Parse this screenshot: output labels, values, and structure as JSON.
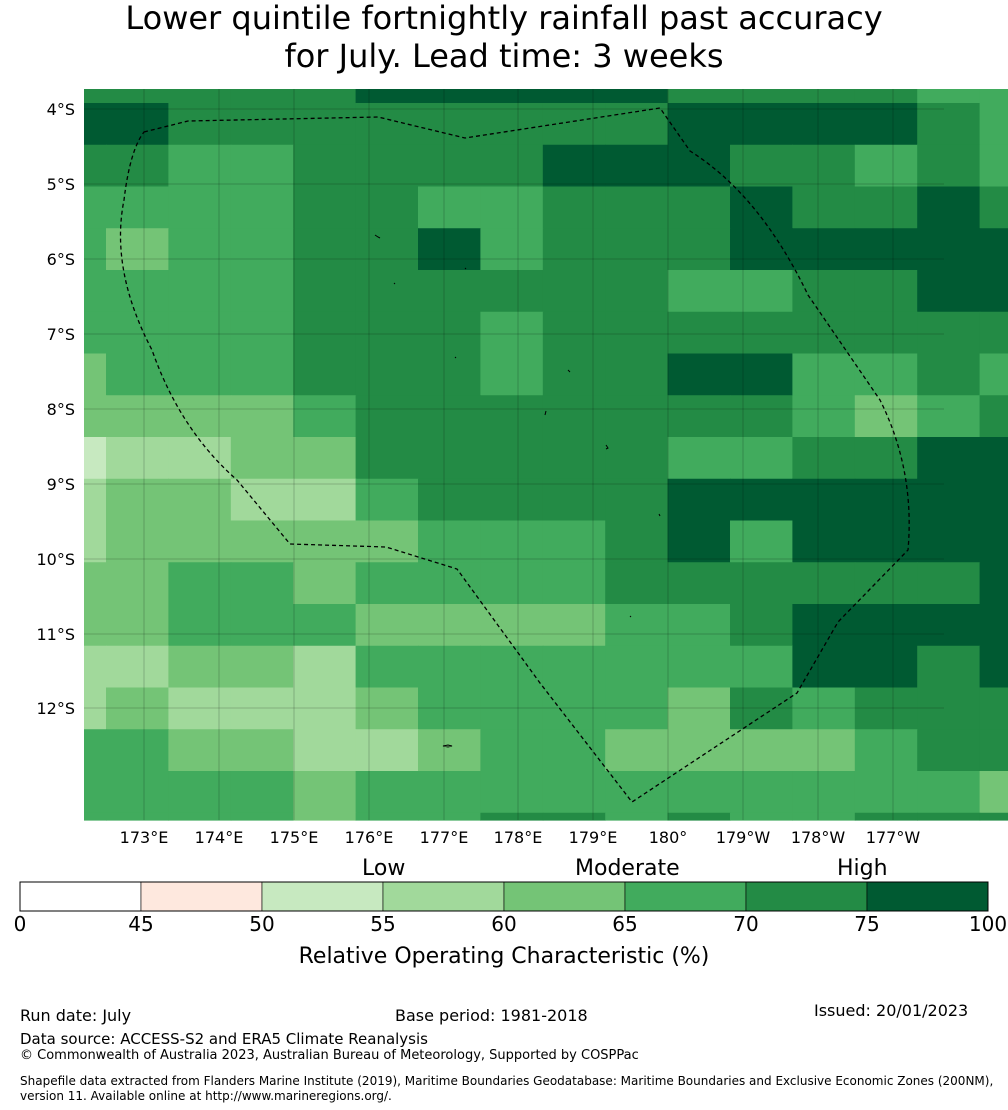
{
  "title": {
    "line1": "Lower quintile fortnightly rainfall past accuracy",
    "line2": "for July. Lead time: 3 weeks"
  },
  "map": {
    "lat_labels": [
      "4°S",
      "5°S",
      "6°S",
      "7°S",
      "8°S",
      "9°S",
      "10°S",
      "11°S",
      "12°S"
    ],
    "lon_labels": [
      "173°E",
      "174°E",
      "175°E",
      "176°E",
      "177°E",
      "178°E",
      "179°E",
      "180°",
      "179°W",
      "178°W",
      "177°W"
    ],
    "grid_rows": [
      [
        6,
        6,
        6,
        6,
        6,
        7,
        7,
        7,
        7,
        7,
        6,
        6,
        6,
        6,
        5,
        5,
        5,
        5
      ],
      [
        7,
        7,
        6,
        6,
        6,
        6,
        6,
        6,
        6,
        6,
        7,
        7,
        7,
        7,
        6,
        5,
        5,
        4
      ],
      [
        6,
        6,
        5,
        5,
        6,
        6,
        6,
        6,
        7,
        7,
        7,
        6,
        6,
        5,
        6,
        5,
        5,
        5
      ],
      [
        5,
        5,
        5,
        5,
        6,
        6,
        5,
        5,
        6,
        6,
        6,
        7,
        6,
        6,
        7,
        6,
        6,
        6
      ],
      [
        5,
        4,
        5,
        5,
        6,
        6,
        7,
        5,
        6,
        6,
        6,
        7,
        7,
        7,
        7,
        7,
        7,
        7
      ],
      [
        5,
        5,
        5,
        5,
        6,
        6,
        6,
        6,
        6,
        6,
        5,
        5,
        6,
        6,
        7,
        7,
        7,
        7
      ],
      [
        5,
        5,
        5,
        5,
        6,
        6,
        6,
        5,
        6,
        6,
        6,
        6,
        6,
        6,
        6,
        6,
        6,
        5
      ],
      [
        4,
        5,
        5,
        5,
        6,
        6,
        6,
        5,
        6,
        6,
        7,
        7,
        5,
        5,
        6,
        5,
        6,
        6
      ],
      [
        4,
        4,
        4,
        4,
        5,
        6,
        6,
        6,
        6,
        6,
        6,
        6,
        5,
        4,
        5,
        6,
        6,
        6
      ],
      [
        2,
        3,
        3,
        4,
        4,
        6,
        6,
        6,
        6,
        6,
        5,
        5,
        6,
        6,
        7,
        7,
        6,
        5
      ],
      [
        3,
        4,
        4,
        3,
        3,
        5,
        6,
        6,
        6,
        6,
        7,
        7,
        7,
        7,
        7,
        7,
        6,
        6
      ],
      [
        3,
        4,
        4,
        4,
        4,
        4,
        5,
        5,
        5,
        6,
        7,
        5,
        7,
        7,
        7,
        7,
        7,
        7
      ],
      [
        4,
        4,
        5,
        5,
        4,
        5,
        5,
        5,
        5,
        6,
        6,
        6,
        6,
        6,
        6,
        7,
        6,
        7
      ],
      [
        4,
        4,
        5,
        5,
        5,
        4,
        4,
        4,
        4,
        5,
        5,
        6,
        7,
        7,
        7,
        7,
        7,
        7
      ],
      [
        3,
        3,
        4,
        4,
        3,
        5,
        5,
        5,
        5,
        5,
        5,
        5,
        7,
        7,
        6,
        7,
        7,
        7
      ],
      [
        3,
        4,
        3,
        3,
        3,
        4,
        5,
        5,
        5,
        5,
        4,
        6,
        5,
        6,
        6,
        6,
        6,
        6
      ],
      [
        5,
        5,
        4,
        4,
        3,
        3,
        4,
        5,
        5,
        4,
        4,
        4,
        4,
        5,
        6,
        6,
        5,
        6
      ],
      [
        5,
        5,
        5,
        5,
        4,
        5,
        5,
        5,
        5,
        5,
        5,
        5,
        5,
        5,
        5,
        4,
        3,
        4
      ],
      [
        5,
        5,
        5,
        5,
        4,
        5,
        5,
        6,
        6,
        5,
        6,
        5,
        5,
        6,
        6,
        6,
        5,
        4
      ]
    ]
  },
  "colorbar": {
    "categories": [
      "Low",
      "Moderate",
      "High"
    ],
    "ticks": [
      "0",
      "45",
      "50",
      "55",
      "60",
      "65",
      "70",
      "75",
      "100"
    ],
    "colors": [
      "#ffffff",
      "#fee8de",
      "#c7e9c0",
      "#a1d99b",
      "#74c476",
      "#41ab5d",
      "#238b45",
      "#005a32"
    ],
    "label": "Relative Operating Characteristic (%)"
  },
  "footer": {
    "run_date": "Run date: July",
    "base_period": "Base period: 1981-2018",
    "issued": "Issued: 20/01/2023",
    "data_source": "Data source: ACCESS-S2 and ERA5 Climate Reanalysis",
    "copyright": "© Commonwealth of Australia 2023, Australian Bureau of Meteorology, Supported by COSPPac",
    "shapefile_line1": "Shapefile data extracted from Flanders Marine Institute (2019), Maritime Boundaries Geodatabase: Maritime Boundaries and Exclusive Economic Zones (200NM),",
    "shapefile_line2": "version 11. Available online at http://www.marineregions.org/."
  }
}
